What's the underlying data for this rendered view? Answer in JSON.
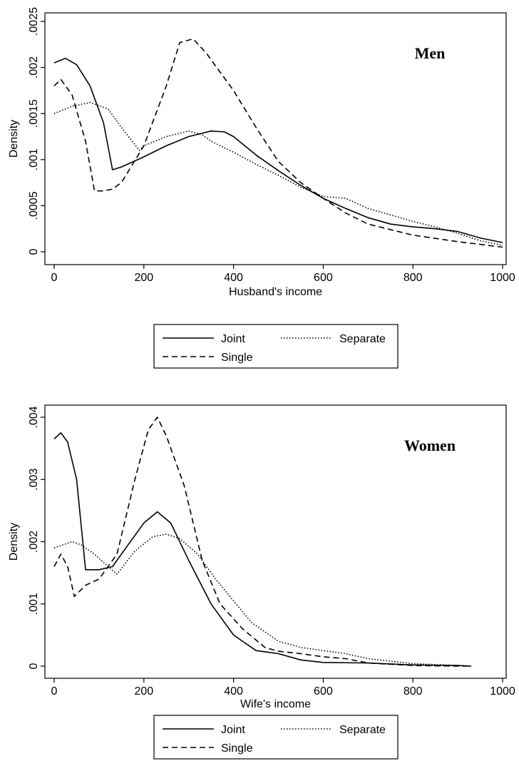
{
  "chart_data": [
    {
      "type": "line",
      "title": "Men",
      "xlabel": "Husband's income",
      "ylabel": "Density",
      "xlim": [
        0,
        1000
      ],
      "ylim": [
        0,
        0.0025
      ],
      "x_ticks": [
        0,
        200,
        400,
        600,
        800,
        1000
      ],
      "y_ticks": [
        0,
        0.0005,
        0.001,
        0.0015,
        0.002,
        0.0025
      ],
      "x_tick_labels": [
        "0",
        "200",
        "400",
        "600",
        "800",
        "1000"
      ],
      "y_tick_labels": [
        "0",
        ".0005",
        ".001",
        ".0015",
        ".002",
        ".0025"
      ],
      "grid": false,
      "legend": {
        "placement": "bottom",
        "entries": [
          "Joint",
          "Separate",
          "Single"
        ]
      },
      "series": [
        {
          "name": "Joint",
          "style": "solid",
          "x": [
            0,
            25,
            50,
            80,
            110,
            130,
            150,
            200,
            250,
            300,
            350,
            380,
            400,
            450,
            500,
            550,
            600,
            650,
            700,
            750,
            800,
            850,
            900,
            950,
            1000
          ],
          "y": [
            0.00205,
            0.0021,
            0.00203,
            0.0018,
            0.0014,
            0.00089,
            0.00092,
            0.00103,
            0.00115,
            0.00125,
            0.00131,
            0.0013,
            0.00125,
            0.00105,
            0.00088,
            0.00072,
            0.00058,
            0.00047,
            0.00037,
            0.0003,
            0.00027,
            0.00025,
            0.00022,
            0.00015,
            0.0001
          ]
        },
        {
          "name": "Separate",
          "style": "dotted",
          "x": [
            0,
            40,
            80,
            120,
            150,
            190,
            200,
            250,
            300,
            330,
            350,
            400,
            450,
            500,
            550,
            600,
            650,
            700,
            750,
            800,
            850,
            900,
            950,
            1000
          ],
          "y": [
            0.0015,
            0.00158,
            0.00162,
            0.00155,
            0.00135,
            0.0011,
            0.00115,
            0.00125,
            0.00131,
            0.00127,
            0.0012,
            0.00108,
            0.00095,
            0.00083,
            0.0007,
            0.0006,
            0.00058,
            0.00047,
            0.0004,
            0.00033,
            0.00027,
            0.0002,
            0.00012,
            7e-05
          ]
        },
        {
          "name": "Single",
          "style": "dashed",
          "x": [
            0,
            15,
            40,
            70,
            90,
            110,
            130,
            150,
            200,
            250,
            280,
            310,
            340,
            370,
            400,
            450,
            500,
            550,
            600,
            650,
            700,
            800,
            900,
            1000
          ],
          "y": [
            0.0018,
            0.00187,
            0.0017,
            0.0012,
            0.00066,
            0.00066,
            0.00068,
            0.00075,
            0.00115,
            0.0018,
            0.00227,
            0.00231,
            0.00215,
            0.00195,
            0.00175,
            0.00135,
            0.00098,
            0.00075,
            0.00058,
            0.00042,
            0.0003,
            0.00018,
            0.00011,
            5e-05
          ]
        }
      ]
    },
    {
      "type": "line",
      "title": "Women",
      "xlabel": "Wife's income",
      "ylabel": "Density",
      "xlim": [
        0,
        1000
      ],
      "ylim": [
        0,
        0.004
      ],
      "x_ticks": [
        0,
        200,
        400,
        600,
        800,
        1000
      ],
      "y_ticks": [
        0,
        0.001,
        0.002,
        0.003,
        0.004
      ],
      "x_tick_labels": [
        "0",
        "200",
        "400",
        "600",
        "800",
        "1000"
      ],
      "y_tick_labels": [
        "0",
        ".001",
        ".002",
        ".003",
        ".004"
      ],
      "grid": false,
      "legend": {
        "placement": "bottom",
        "entries": [
          "Joint",
          "Separate",
          "Single"
        ]
      },
      "series": [
        {
          "name": "Joint",
          "style": "solid",
          "x": [
            0,
            15,
            30,
            50,
            70,
            100,
            130,
            160,
            200,
            230,
            260,
            300,
            350,
            400,
            450,
            500,
            550,
            600,
            700,
            800,
            900,
            930
          ],
          "y": [
            0.00365,
            0.00375,
            0.0036,
            0.003,
            0.00155,
            0.00155,
            0.0016,
            0.0019,
            0.0023,
            0.00248,
            0.0023,
            0.0017,
            0.001,
            0.0005,
            0.00025,
            0.0002,
            0.0001,
            6e-05,
            5e-05,
            2e-05,
            1e-05,
            0.0
          ]
        },
        {
          "name": "Separate",
          "style": "dotted",
          "x": [
            0,
            40,
            60,
            90,
            120,
            140,
            180,
            220,
            250,
            280,
            320,
            360,
            400,
            440,
            500,
            550,
            600,
            650,
            700,
            800,
            900,
            930
          ],
          "y": [
            0.0019,
            0.002,
            0.00195,
            0.0018,
            0.0016,
            0.00148,
            0.00185,
            0.00208,
            0.00212,
            0.00205,
            0.0018,
            0.0014,
            0.00105,
            0.0007,
            0.0004,
            0.0003,
            0.00025,
            0.0002,
            0.00012,
            4e-05,
            1e-05,
            0.0
          ]
        },
        {
          "name": "Single",
          "style": "dashed",
          "x": [
            0,
            15,
            30,
            45,
            70,
            100,
            140,
            180,
            210,
            230,
            250,
            290,
            330,
            370,
            420,
            470,
            500,
            550,
            600,
            650,
            700,
            800,
            900,
            930
          ],
          "y": [
            0.0016,
            0.0018,
            0.0016,
            0.00112,
            0.0013,
            0.0014,
            0.0018,
            0.003,
            0.0038,
            0.004,
            0.0037,
            0.0029,
            0.0017,
            0.001,
            0.0006,
            0.0003,
            0.00024,
            0.0002,
            0.00015,
            0.00012,
            5e-05,
            1e-05,
            0.0,
            0.0
          ]
        }
      ]
    }
  ]
}
